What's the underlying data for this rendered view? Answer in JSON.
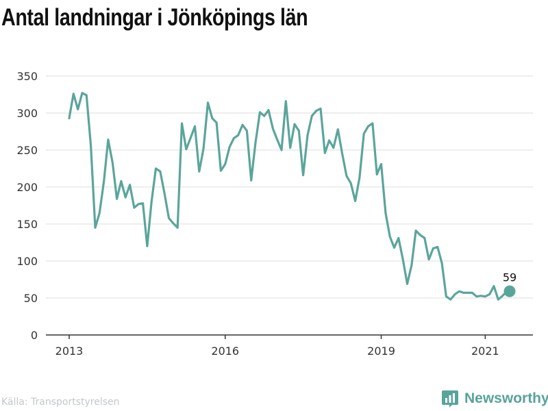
{
  "title": "Antal landningar i Jönköpings län",
  "source": "Källa: Transportstyrelsen",
  "brand": "Newsworthy",
  "colors": {
    "line": "#5aa59b",
    "grid": "#dcdcdc",
    "axis": "#333333",
    "text": "#333333",
    "brand": "#58a39a"
  },
  "chart_data": {
    "type": "line",
    "title": "Antal landningar i Jönköpings län",
    "xlabel": "",
    "ylabel": "",
    "ylim": [
      0,
      350
    ],
    "yticks": [
      0,
      50,
      100,
      150,
      200,
      250,
      300,
      350
    ],
    "xticks": [
      "2013",
      "2016",
      "2019",
      "2021"
    ],
    "grid": true,
    "last_label": "59",
    "series": [
      {
        "x": [
          "2013-01",
          "2013-02",
          "2013-03",
          "2013-04",
          "2013-05",
          "2013-06",
          "2013-07",
          "2013-08",
          "2013-09",
          "2013-10",
          "2013-11",
          "2013-12",
          "2014-01",
          "2014-02",
          "2014-03",
          "2014-04",
          "2014-05",
          "2014-06",
          "2014-07",
          "2014-08",
          "2014-09",
          "2014-10",
          "2014-11",
          "2014-12",
          "2015-01",
          "2015-02",
          "2015-03",
          "2015-04",
          "2015-05",
          "2015-06",
          "2015-07",
          "2015-08",
          "2015-09",
          "2015-10",
          "2015-11",
          "2015-12",
          "2016-01",
          "2016-02",
          "2016-03",
          "2016-04",
          "2016-05",
          "2016-06",
          "2016-07",
          "2016-08",
          "2016-09",
          "2016-10",
          "2016-11",
          "2016-12",
          "2017-01",
          "2017-02",
          "2017-03",
          "2017-04",
          "2017-05",
          "2017-06",
          "2017-07",
          "2017-08",
          "2017-09",
          "2017-10",
          "2017-11",
          "2017-12",
          "2018-01",
          "2018-02",
          "2018-03",
          "2018-04",
          "2018-05",
          "2018-06",
          "2018-07",
          "2018-08",
          "2018-09",
          "2018-10",
          "2018-11",
          "2018-12",
          "2019-01",
          "2019-02",
          "2019-03",
          "2019-04",
          "2019-05",
          "2019-06",
          "2019-07",
          "2019-08",
          "2019-09",
          "2019-10",
          "2019-11",
          "2019-12",
          "2020-01",
          "2020-02",
          "2020-03",
          "2020-04",
          "2020-05",
          "2020-06",
          "2020-07",
          "2020-08",
          "2020-09",
          "2020-10",
          "2020-11",
          "2020-12",
          "2021-01",
          "2021-02",
          "2021-03",
          "2021-04",
          "2021-05",
          "2021-06"
        ],
        "values": [
          293,
          326,
          305,
          327,
          324,
          256,
          145,
          165,
          207,
          264,
          233,
          184,
          208,
          186,
          203,
          172,
          177,
          178,
          120,
          180,
          225,
          221,
          191,
          158,
          151,
          145,
          286,
          251,
          266,
          282,
          221,
          252,
          314,
          293,
          287,
          222,
          231,
          254,
          266,
          270,
          284,
          276,
          209,
          260,
          301,
          296,
          304,
          279,
          264,
          250,
          316,
          253,
          285,
          276,
          216,
          270,
          296,
          303,
          306,
          246,
          263,
          253,
          278,
          245,
          215,
          205,
          181,
          213,
          272,
          282,
          286,
          217,
          231,
          165,
          133,
          118,
          131,
          102,
          69,
          94,
          141,
          135,
          131,
          102,
          117,
          119,
          97,
          52,
          48,
          55,
          59,
          57,
          57,
          57,
          52,
          53,
          52,
          55,
          66,
          48,
          53,
          59
        ]
      }
    ]
  }
}
